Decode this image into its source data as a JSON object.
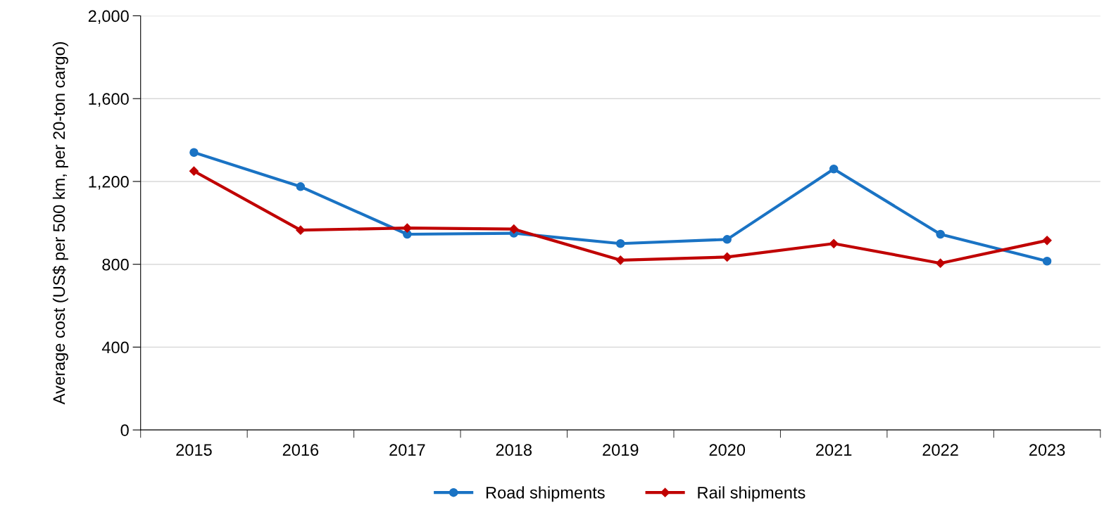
{
  "chart_data": {
    "type": "line",
    "ylabel": "Average cost (US$ per 500 km, per 20-ton cargo)",
    "categories": [
      "2015",
      "2016",
      "2017",
      "2018",
      "2019",
      "2020",
      "2021",
      "2022",
      "2023"
    ],
    "series": [
      {
        "name": "Road shipments",
        "color": "#1a73c4",
        "marker": "circle",
        "values": [
          1340,
          1175,
          945,
          950,
          900,
          920,
          1260,
          945,
          815
        ]
      },
      {
        "name": "Rail shipments",
        "color": "#c00000",
        "marker": "diamond",
        "values": [
          1250,
          965,
          975,
          970,
          820,
          835,
          900,
          805,
          915
        ]
      }
    ],
    "ylim": [
      0,
      2000
    ],
    "yticks": [
      {
        "value": 0,
        "label": "0"
      },
      {
        "value": 400,
        "label": "400"
      },
      {
        "value": 800,
        "label": "800"
      },
      {
        "value": 1200,
        "label": "1,200"
      },
      {
        "value": 1600,
        "label": "1,600"
      },
      {
        "value": 2000,
        "label": "2,000"
      }
    ],
    "grid": "y",
    "legend": "bottom",
    "line_style": "solid"
  }
}
